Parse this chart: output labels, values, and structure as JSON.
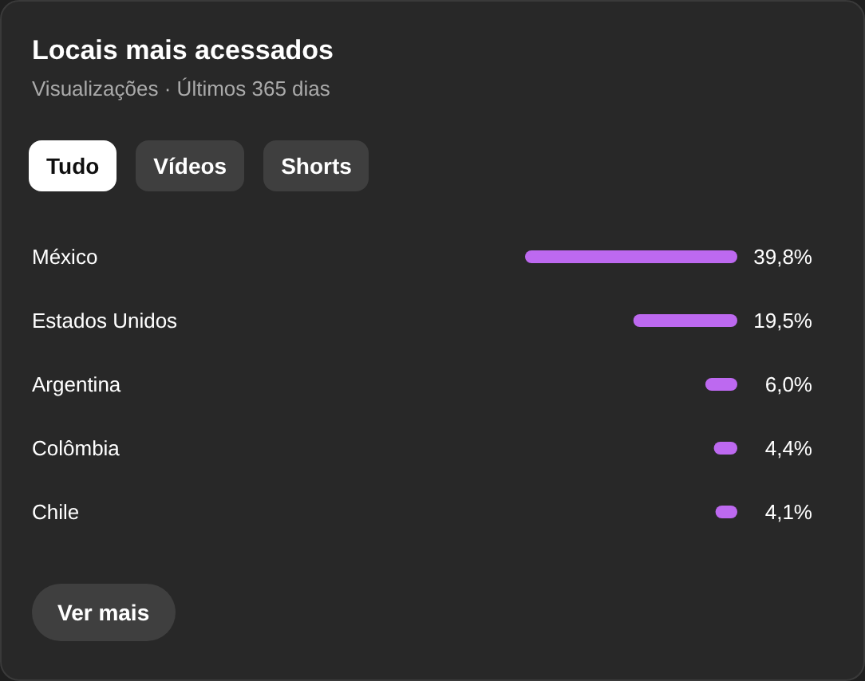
{
  "chart_data": {
    "type": "bar",
    "title": "Locais mais acessados",
    "subtitle": "Visualizações · Últimos 365 dias",
    "orientation": "horizontal",
    "categories": [
      "México",
      "Estados Unidos",
      "Argentina",
      "Colômbia",
      "Chile"
    ],
    "values": [
      39.8,
      19.5,
      6.0,
      4.4,
      4.1
    ],
    "value_labels": [
      "39,8%",
      "19,5%",
      "6,0%",
      "4,4%",
      "4,1%"
    ],
    "color": "#bd69f0",
    "annotations": [
      "Tudo",
      "Vídeos",
      "Shorts",
      "Ver mais"
    ]
  }
}
